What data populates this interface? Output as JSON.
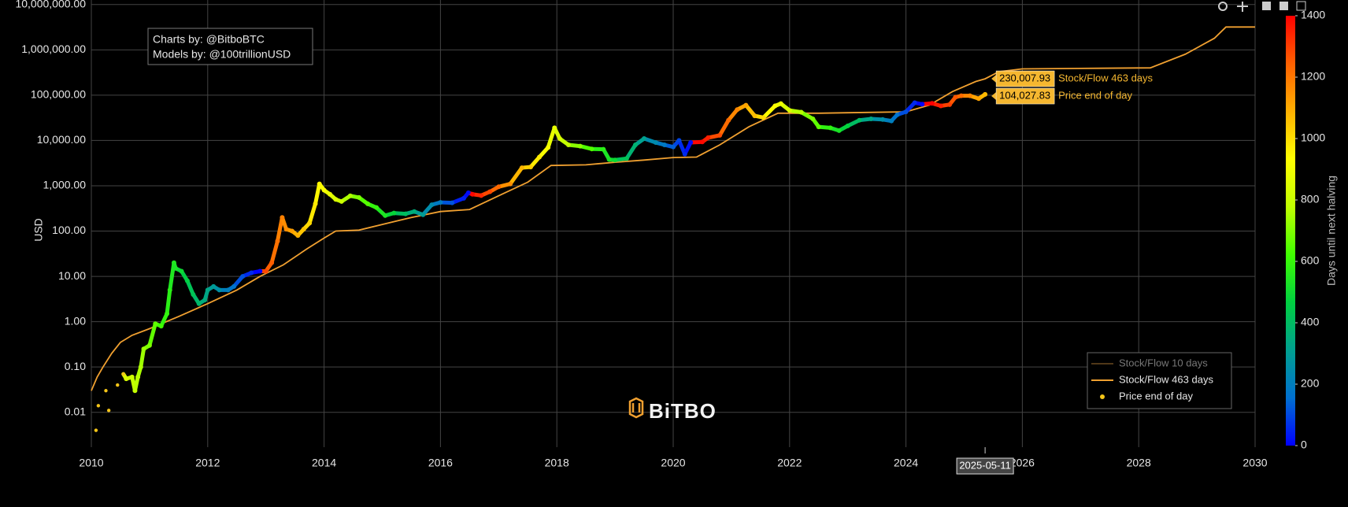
{
  "chart_data": {
    "type": "scatter",
    "log_y": true,
    "grid": true,
    "y_label": "USD",
    "xlim": [
      2010,
      2030
    ],
    "xticks": [
      2010,
      2012,
      2014,
      2016,
      2018,
      2020,
      2022,
      2024,
      2026,
      2028,
      2030
    ],
    "ylim": [
      0.0017,
      12600000
    ],
    "yticks": [
      {
        "value": 0.01,
        "label": "0.01"
      },
      {
        "value": 0.1,
        "label": "0.10"
      },
      {
        "value": 1,
        "label": "1.00"
      },
      {
        "value": 10,
        "label": "10.00"
      },
      {
        "value": 100,
        "label": "100.00"
      },
      {
        "value": 1000,
        "label": "1,000.00"
      },
      {
        "value": 10000,
        "label": "10,000.00"
      },
      {
        "value": 100000,
        "label": "100,000.00"
      },
      {
        "value": 1000000,
        "label": "1,000,000.00"
      },
      {
        "value": 10000000,
        "label": "10,000,000.00"
      }
    ],
    "credits": [
      "Charts by: @BitboBTC",
      "Models by: @100trillionUSD"
    ],
    "watermark": "BiTBO",
    "legend_corner": "bottom-right",
    "colorbar": {
      "title": "Days until next halving",
      "clim": [
        0,
        1400
      ],
      "ticks": [
        0,
        200,
        400,
        600,
        800,
        1000,
        1200,
        1400
      ],
      "colorscale": [
        "#0000ff",
        "#0070d0",
        "#00a090",
        "#00d040",
        "#40ff00",
        "#c0ff00",
        "#ffff00",
        "#ffb000",
        "#ff6000",
        "#ff0000"
      ]
    },
    "hover": {
      "x_label": "2025-05-11",
      "x": 2025.36
    },
    "series": [
      {
        "name": "Stock/Flow 10 days",
        "kind": "line",
        "visible": false,
        "color": "#a07030"
      },
      {
        "name": "Stock/Flow 463 days",
        "kind": "line",
        "color": "#f0a030",
        "hover_value": 230007.93,
        "hover_label": "230,007.93",
        "x": [
          2010.0,
          2010.1,
          2010.2,
          2010.35,
          2010.5,
          2010.7,
          2011.0,
          2011.5,
          2012.0,
          2012.5,
          2012.9,
          2013.3,
          2013.7,
          2014.0,
          2014.2,
          2014.6,
          2015.0,
          2015.5,
          2016.0,
          2016.5,
          2017.0,
          2017.5,
          2017.9,
          2018.5,
          2019.0,
          2019.5,
          2020.0,
          2020.4,
          2020.8,
          2021.3,
          2021.8,
          2022.5,
          2023.0,
          2024.0,
          2024.4,
          2024.8,
          2025.2,
          2025.36,
          2025.6,
          2026.0,
          2027.0,
          2028.2,
          2028.8,
          2029.3,
          2029.5,
          2030.0
        ],
        "values": [
          0.03,
          0.06,
          0.1,
          0.2,
          0.35,
          0.5,
          0.7,
          1.3,
          2.5,
          5,
          10,
          18,
          40,
          70,
          100,
          105,
          140,
          200,
          270,
          300,
          600,
          1200,
          2800,
          2900,
          3300,
          3700,
          4200,
          4300,
          8000,
          20000,
          40000,
          40000,
          41000,
          43000,
          60000,
          120000,
          200000,
          230007.93,
          330000,
          380000,
          390000,
          400000,
          800000,
          1800000,
          3200000,
          3200000
        ]
      },
      {
        "name": "Price end of day",
        "kind": "points",
        "color": "#f5c518",
        "hover_value": 104027.83,
        "hover_label": "104,027.83",
        "x": [
          2010.08,
          2010.12,
          2010.25,
          2010.3,
          2010.45,
          2010.55,
          2010.6,
          2010.7,
          2010.75,
          2010.8,
          2010.85,
          2010.9,
          2011.0,
          2011.1,
          2011.2,
          2011.3,
          2011.35,
          2011.42,
          2011.45,
          2011.55,
          2011.65,
          2011.75,
          2011.85,
          2011.95,
          2012.0,
          2012.1,
          2012.2,
          2012.35,
          2012.45,
          2012.6,
          2012.75,
          2012.9,
          2013.0,
          2013.1,
          2013.2,
          2013.28,
          2013.35,
          2013.45,
          2013.55,
          2013.65,
          2013.75,
          2013.85,
          2013.92,
          2014.0,
          2014.1,
          2014.2,
          2014.3,
          2014.45,
          2014.6,
          2014.75,
          2014.9,
          2015.05,
          2015.2,
          2015.4,
          2015.55,
          2015.7,
          2015.85,
          2016.0,
          2016.2,
          2016.4,
          2016.48,
          2016.55,
          2016.7,
          2016.85,
          2017.0,
          2017.2,
          2017.4,
          2017.55,
          2017.7,
          2017.85,
          2017.96,
          2018.05,
          2018.2,
          2018.4,
          2018.6,
          2018.8,
          2018.9,
          2019.0,
          2019.2,
          2019.35,
          2019.5,
          2019.7,
          2019.85,
          2020.0,
          2020.1,
          2020.2,
          2020.3,
          2020.5,
          2020.6,
          2020.8,
          2020.95,
          2021.1,
          2021.25,
          2021.4,
          2021.55,
          2021.75,
          2021.85,
          2022.0,
          2022.2,
          2022.4,
          2022.5,
          2022.7,
          2022.85,
          2023.0,
          2023.2,
          2023.4,
          2023.6,
          2023.75,
          2023.85,
          2024.0,
          2024.15,
          2024.28,
          2024.45,
          2024.6,
          2024.75,
          2024.85,
          2024.95,
          2025.1,
          2025.25,
          2025.36
        ],
        "values": [
          0.004,
          0.014,
          0.03,
          0.011,
          0.04,
          0.07,
          0.055,
          0.06,
          0.03,
          0.06,
          0.1,
          0.25,
          0.3,
          0.9,
          0.8,
          1.5,
          5,
          20,
          15,
          13,
          8,
          4,
          2.5,
          3,
          5,
          6,
          5,
          5,
          6,
          10,
          12,
          13,
          13,
          20,
          60,
          200,
          110,
          100,
          80,
          110,
          150,
          400,
          1100,
          800,
          650,
          500,
          450,
          600,
          550,
          400,
          330,
          220,
          250,
          240,
          270,
          230,
          380,
          430,
          420,
          530,
          700,
          650,
          610,
          740,
          950,
          1100,
          2500,
          2600,
          4300,
          7000,
          19000,
          11000,
          8000,
          7500,
          6500,
          6400,
          3800,
          3700,
          4000,
          8000,
          11000,
          9000,
          8000,
          7200,
          10000,
          5000,
          9000,
          9300,
          11500,
          13000,
          28000,
          48000,
          60000,
          35000,
          32000,
          58000,
          65000,
          46000,
          42000,
          30000,
          20000,
          19000,
          16500,
          21000,
          28000,
          30000,
          29000,
          27000,
          37000,
          43000,
          68000,
          63000,
          66000,
          58000,
          62000,
          90000,
          97000,
          97000,
          84000,
          104027.83
        ],
        "color_values": [
          1033,
          1018,
          971,
          953,
          898,
          861,
          843,
          807,
          788,
          770,
          752,
          734,
          697,
          661,
          624,
          588,
          569,
          544,
          533,
          496,
          460,
          423,
          387,
          350,
          332,
          296,
          259,
          204,
          168,
          113,
          58,
          4,
          1285,
          1248,
          1212,
          1183,
          1157,
          1121,
          1084,
          1048,
          1011,
          975,
          949,
          920,
          883,
          847,
          810,
          756,
          701,
          646,
          591,
          537,
          482,
          409,
          354,
          299,
          245,
          190,
          117,
          44,
          15,
          1391,
          1336,
          1281,
          1226,
          1153,
          1080,
          1026,
          971,
          916,
          876,
          843,
          788,
          715,
          642,
          569,
          533,
          496,
          423,
          369,
          314,
          241,
          186,
          131,
          95,
          58,
          22,
          1387,
          1351,
          1278,
          1223,
          1168,
          1113,
          1059,
          1004,
          931,
          894,
          840,
          767,
          694,
          657,
          584,
          529,
          475,
          402,
          329,
          256,
          201,
          164,
          110,
          55,
          7,
          1400,
          1351,
          1296,
          1259,
          1223,
          1168,
          1113,
          1073
        ]
      }
    ]
  }
}
